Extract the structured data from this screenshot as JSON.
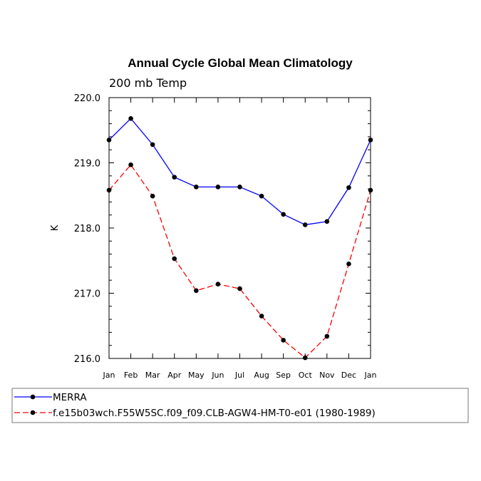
{
  "chart_data": {
    "type": "line",
    "title": "Annual Cycle Global Mean Climatology",
    "subtitle": "200 mb Temp",
    "ylabel": "K",
    "xlabel": "",
    "categories": [
      "Jan",
      "Feb",
      "Mar",
      "Apr",
      "May",
      "Jun",
      "Jul",
      "Aug",
      "Sep",
      "Oct",
      "Nov",
      "Dec",
      "Jan"
    ],
    "ylim": [
      216.0,
      220.0
    ],
    "yticks": [
      "216.0",
      "217.0",
      "218.0",
      "219.0",
      "220.0"
    ],
    "series": [
      {
        "name": "MERRA",
        "color": "#0000ff",
        "dash": "solid",
        "values": [
          219.35,
          219.68,
          219.28,
          218.78,
          218.63,
          218.63,
          218.63,
          218.49,
          218.21,
          218.05,
          218.1,
          218.62,
          219.35
        ]
      },
      {
        "name": "f.e15b03wch.F55W5SC.f09_f09.CLB-AGW4-HM-T0-e01 (1980-1989)",
        "color": "#ff0000",
        "dash": "dashed",
        "values": [
          218.58,
          218.97,
          218.49,
          217.53,
          217.04,
          217.14,
          217.07,
          216.65,
          216.28,
          216.01,
          216.34,
          217.45,
          218.58
        ]
      }
    ],
    "legend_position": "bottom-left",
    "grid": false
  }
}
